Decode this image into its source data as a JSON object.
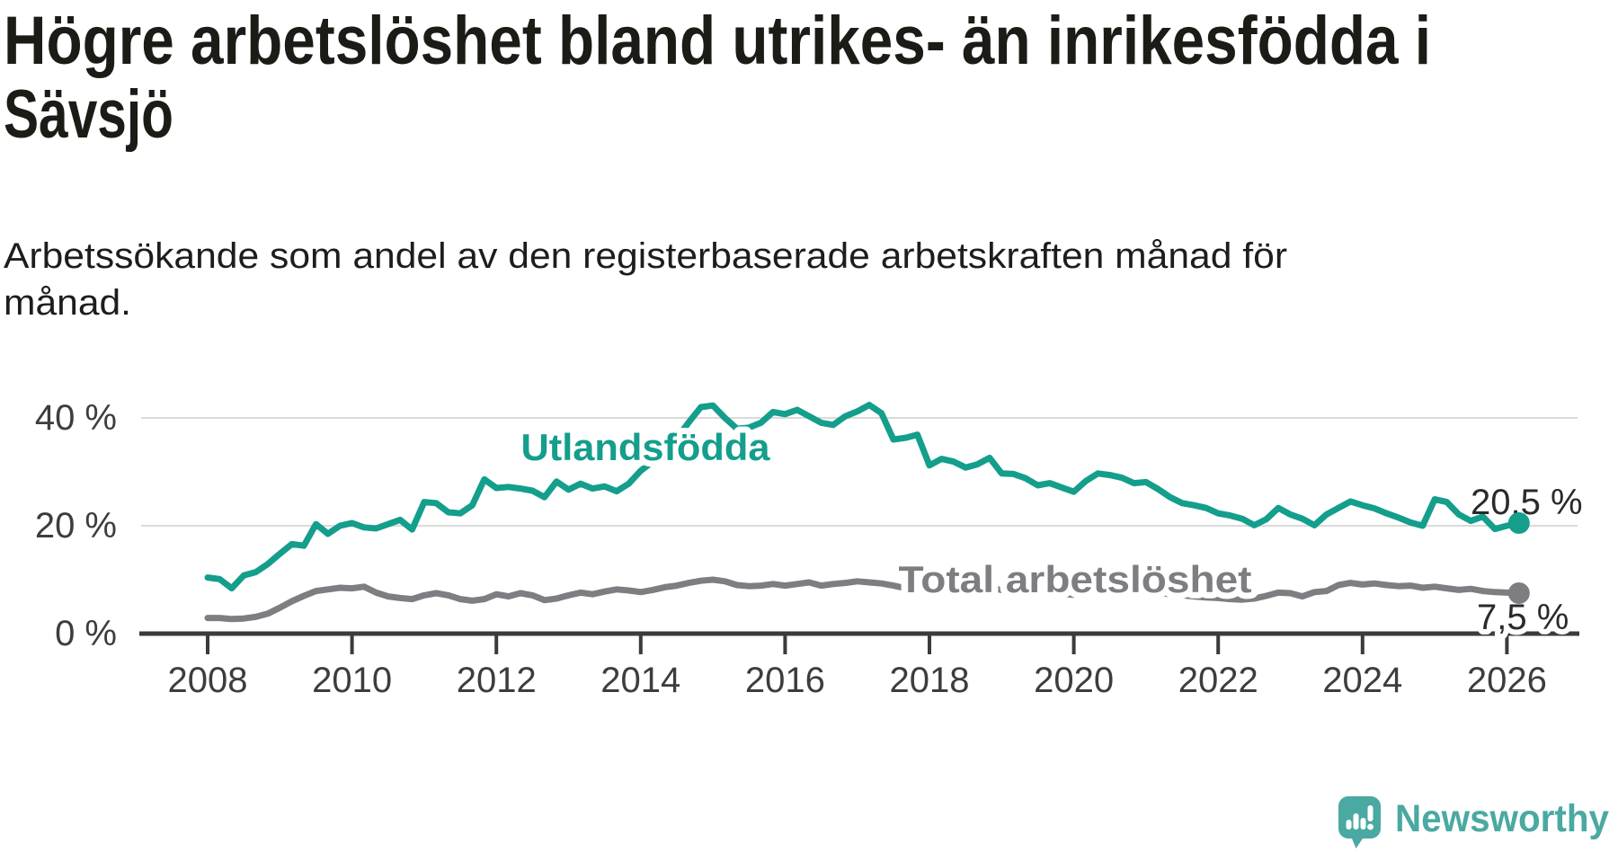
{
  "page": {
    "background": "#ffffff"
  },
  "title": {
    "lines": [
      "Högre arbetslöshet bland utrikes- än inrikesfödda i",
      "Sävsjö"
    ],
    "color": "#1c1c17"
  },
  "subtitle": {
    "lines": [
      "Arbetssökande som andel av den registerbaserade arbetskraften månad för",
      "månad."
    ],
    "color": "#1d1d1d"
  },
  "chart_data": {
    "type": "line",
    "title": "Högre arbetslöshet bland utrikes- än inrikesfödda i Sävsjö",
    "subtitle": "Arbetssökande som andel av den registerbaserade arbetskraften månad för månad.",
    "unit": "%",
    "x_start": 2008,
    "x_step_years": 0.1666667,
    "x_axis": {
      "tick_years": [
        2008,
        2010,
        2012,
        2014,
        2016,
        2018,
        2020,
        2022,
        2024,
        2026
      ],
      "tick_labels": [
        "2008",
        "2010",
        "2012",
        "2014",
        "2016",
        "2018",
        "2020",
        "2022",
        "2024",
        "2026"
      ]
    },
    "y_axis": {
      "ticks": [
        {
          "value": 0,
          "label": "0 %"
        },
        {
          "value": 20,
          "label": "20 %"
        },
        {
          "value": 40,
          "label": "40 %"
        }
      ],
      "range": [
        0,
        44
      ],
      "grid": true
    },
    "style": {
      "axis_color": "#3b3b3b",
      "grid_color": "#dadada",
      "tick_text_color": "#3d3d3d"
    },
    "legend_position": "inline-labels",
    "series": [
      {
        "name": "Utlandsfödda",
        "color": "#149e8c",
        "end_label": "20,5 %",
        "end_value": 20.5,
        "values": [
          10.4,
          10.1,
          8.4,
          10.8,
          11.4,
          12.9,
          14.8,
          16.6,
          16.3,
          20.3,
          18.5,
          20.0,
          20.5,
          19.7,
          19.5,
          20.3,
          21.1,
          19.3,
          24.4,
          24.2,
          22.5,
          22.3,
          23.8,
          28.6,
          27.0,
          27.2,
          26.9,
          26.5,
          25.3,
          28.2,
          26.7,
          27.8,
          26.9,
          27.3,
          26.4,
          27.8,
          30.2,
          31.9,
          33.6,
          36.2,
          39.2,
          42.0,
          42.3,
          40.0,
          38.0,
          38.2,
          39.1,
          41.1,
          40.7,
          41.5,
          40.3,
          39.1,
          38.7,
          40.3,
          41.2,
          42.4,
          40.9,
          36.0,
          36.3,
          36.9,
          31.2,
          32.4,
          31.9,
          30.8,
          31.4,
          32.6,
          29.7,
          29.6,
          28.8,
          27.5,
          27.9,
          27.1,
          26.3,
          28.3,
          29.7,
          29.4,
          28.9,
          27.9,
          28.1,
          26.8,
          25.3,
          24.2,
          23.8,
          23.3,
          22.3,
          21.9,
          21.3,
          20.1,
          21.2,
          23.3,
          22.1,
          21.3,
          20.1,
          22.1,
          23.3,
          24.5,
          23.8,
          23.2,
          22.3,
          21.5,
          20.6,
          20.0,
          24.9,
          24.4,
          22.1,
          20.9,
          21.7,
          19.4,
          20.0,
          20.5
        ]
      },
      {
        "name": "Total arbetslöshet",
        "color": "#7d7d82",
        "end_label": "7,5 %",
        "end_value": 7.5,
        "values": [
          2.9,
          2.9,
          2.7,
          2.8,
          3.1,
          3.7,
          4.8,
          6.0,
          7.0,
          7.9,
          8.2,
          8.5,
          8.4,
          8.7,
          7.6,
          6.9,
          6.6,
          6.4,
          7.1,
          7.5,
          7.1,
          6.4,
          6.1,
          6.4,
          7.3,
          6.9,
          7.5,
          7.1,
          6.2,
          6.5,
          7.1,
          7.6,
          7.3,
          7.8,
          8.2,
          8.0,
          7.7,
          8.1,
          8.6,
          8.9,
          9.4,
          9.8,
          10.0,
          9.7,
          9.0,
          8.8,
          8.9,
          9.2,
          8.9,
          9.2,
          9.5,
          8.9,
          9.2,
          9.4,
          9.7,
          9.5,
          9.3,
          8.9,
          8.4,
          8.0,
          8.4,
          8.6,
          8.3,
          8.1,
          8.3,
          8.5,
          8.1,
          7.9,
          7.7,
          7.5,
          7.6,
          7.4,
          7.2,
          8.0,
          8.6,
          8.5,
          8.3,
          8.0,
          7.9,
          7.6,
          7.3,
          7.1,
          6.9,
          6.7,
          6.6,
          6.4,
          6.3,
          6.5,
          7.0,
          7.6,
          7.5,
          6.9,
          7.7,
          7.9,
          9.0,
          9.4,
          9.1,
          9.3,
          9.0,
          8.8,
          8.9,
          8.5,
          8.7,
          8.4,
          8.1,
          8.3,
          7.9,
          7.7,
          7.6,
          7.5
        ]
      }
    ]
  },
  "branding": {
    "name": "Newsworthy",
    "color": "#4aa9a2",
    "icon": "newsworthy-speech-bubble-bar-chart-logo"
  }
}
